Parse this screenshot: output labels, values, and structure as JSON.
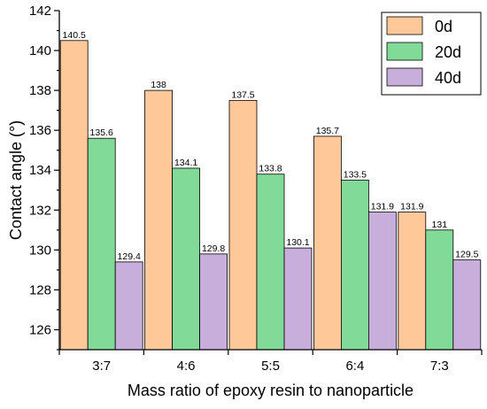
{
  "chart_data": {
    "type": "bar",
    "title": "",
    "xlabel": "Mass ratio of epoxy resin to nanoparticle",
    "ylabel": "Contact angle (°)",
    "categories": [
      "3:7",
      "4:6",
      "5:5",
      "6:4",
      "7:3"
    ],
    "ylim": [
      125,
      142
    ],
    "yticks": [
      126,
      128,
      130,
      132,
      134,
      136,
      138,
      140,
      142
    ],
    "grid": false,
    "legend": "top-right",
    "series": [
      {
        "name": "0d",
        "color": "#FFC898",
        "values": [
          140.5,
          138,
          137.5,
          135.7,
          131.9
        ]
      },
      {
        "name": "20d",
        "color": "#82DA98",
        "values": [
          135.6,
          134.1,
          133.8,
          133.5,
          131
        ]
      },
      {
        "name": "40d",
        "color": "#C8AEDA",
        "values": [
          129.4,
          129.8,
          130.1,
          131.9,
          129.5
        ]
      }
    ]
  }
}
